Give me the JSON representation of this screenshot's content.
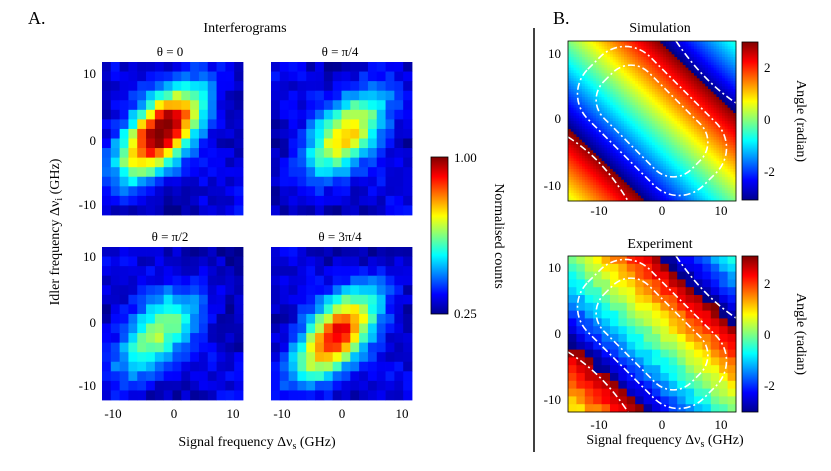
{
  "figure": {
    "panel_a_label": "A.",
    "panel_b_label": "B."
  },
  "chart_data": [
    {
      "type": "heatmap",
      "group_title": "Interferograms",
      "xlabel": "Signal frequency Δν",
      "xlabel_sub": "s",
      "xlabel_unit": " (GHz)",
      "ylabel": "Idler frequency Δν",
      "ylabel_sub": "i",
      "ylabel_unit": " (GHz)",
      "xlim": [
        -12,
        12
      ],
      "ylim": [
        -12,
        12
      ],
      "xticks": [
        -10,
        0,
        10
      ],
      "yticks": [
        -10,
        0,
        10
      ],
      "grid_size": 16,
      "colorbar": {
        "min": 0.25,
        "max": 1.0,
        "min_label": "0.25",
        "max_label": "1.00",
        "label": "Normalised counts",
        "colormap": "jet"
      },
      "panels": [
        {
          "title": "θ = 0",
          "peak_value": 1.0,
          "peak_at": [
            -2,
            1
          ]
        },
        {
          "title": "θ = π/4",
          "peak_value": 0.72,
          "peak_at": [
            1,
            1
          ]
        },
        {
          "title": "θ = π/2",
          "peak_value": 0.62,
          "peak_at": [
            -3,
            -2
          ]
        },
        {
          "title": "θ = 3π/4",
          "peak_value": 0.88,
          "peak_at": [
            -1,
            -2
          ]
        }
      ]
    },
    {
      "type": "heatmap",
      "xlabel": "Signal frequency Δν",
      "xlabel_sub": "s",
      "xlabel_unit": " (GHz)",
      "xlim": [
        -12,
        12
      ],
      "ylim": [
        -12,
        12
      ],
      "xticks": [
        -10,
        0,
        10
      ],
      "yticks": [
        -10,
        0,
        10
      ],
      "colorbar": {
        "min": -3.14,
        "max": 3.14,
        "ticks": [
          2,
          0,
          -2
        ],
        "label": "Angle (radian)",
        "colormap": "jet"
      },
      "panels": [
        {
          "title": "Simulation",
          "kind": "phase",
          "contours": "dash-dot white"
        },
        {
          "title": "Experiment",
          "kind": "phase",
          "contours": "dash-dot white"
        }
      ]
    }
  ]
}
